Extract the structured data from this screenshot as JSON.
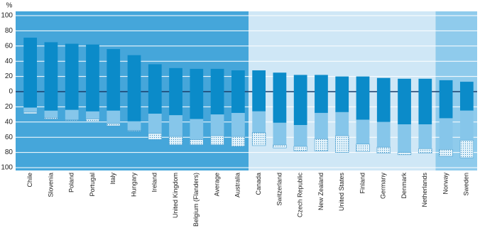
{
  "chart_data": {
    "type": "bar",
    "y_label": "%",
    "categories": [
      "Chile",
      "Slovenia",
      "Poland",
      "Portugal",
      "Italy",
      "Hungary",
      "Ireland",
      "United Kingdom",
      "Belgium (Flanders)",
      "Average",
      "Australia",
      "Canada",
      "Switzerland",
      "Czech Republic",
      "New Zealand",
      "United States",
      "Finland",
      "Germany",
      "Denmark",
      "Netherlands",
      "Norway",
      "Sweden"
    ],
    "series": [
      {
        "color": "#0b8bc9",
        "values": [
          71,
          65,
          63,
          62,
          56,
          48,
          36,
          31,
          30,
          30,
          28,
          28,
          25,
          22,
          22,
          20,
          20,
          18,
          17,
          17,
          15,
          13
        ]
      },
      {
        "color": "#0b8bc9",
        "values": [
          -21,
          -25,
          -24,
          -26,
          -25,
          -39,
          -29,
          -31,
          -36,
          -30,
          -28,
          -26,
          -41,
          -44,
          -28,
          -27,
          -37,
          -40,
          -43,
          -43,
          -35,
          -25
        ]
      },
      {
        "color": "#86c6ea",
        "values": [
          -6,
          -9,
          -13,
          -10,
          -17,
          -12,
          -26,
          -28,
          -27,
          -28,
          -31,
          -28,
          -29,
          -28,
          -34,
          -31,
          -32,
          -33,
          -37,
          -32,
          -41,
          -39
        ]
      },
      {
        "color": "#d2ebf8",
        "pattern": "dots",
        "values": [
          -2,
          -2,
          -1,
          -3,
          -3,
          -1,
          -8,
          -11,
          -7,
          -12,
          -13,
          -17,
          -4,
          -6,
          -16,
          -22,
          -10,
          -8,
          -3,
          -6,
          -9,
          -23
        ]
      }
    ],
    "panels": [
      {
        "count": 11,
        "color": "#45a6da"
      },
      {
        "count": 9,
        "color": "#cfe7f6"
      },
      {
        "count": 2,
        "color": "#8fcbec"
      }
    ],
    "ylim": [
      -100,
      100
    ],
    "yticks": [
      100,
      80,
      60,
      40,
      20,
      0,
      {
        "value": -20,
        "label": "20"
      },
      {
        "value": -40,
        "label": "40"
      },
      {
        "value": -60,
        "label": "60"
      },
      {
        "value": -80,
        "label": "80"
      },
      {
        "value": -100,
        "label": "100"
      }
    ],
    "grid": true
  }
}
